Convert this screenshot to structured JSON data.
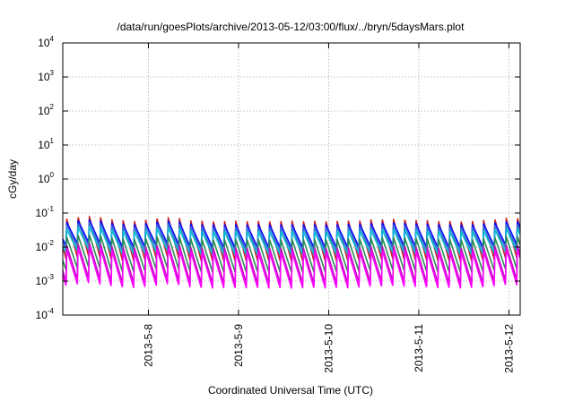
{
  "chart_data": {
    "type": "line",
    "title": "/data/run/goesPlots/archive/2013-05-12/03:00/flux/../bryn/5daysMars.plot",
    "xlabel": "Coordinated Universal Time (UTC)",
    "ylabel": "cGy/day",
    "x_range": [
      "2013-05-07T01:12",
      "2013-05-12T03:00"
    ],
    "y_range": [
      0.0001,
      10000
    ],
    "y_scale": "log",
    "grid": true,
    "x_ticks": [
      "2013-5-8",
      "2013-5-9",
      "2013-5-10",
      "2013-5-11",
      "2013-5-12"
    ],
    "y_ticks": [
      {
        "value": 0.0001,
        "base": "10",
        "exp": "-4"
      },
      {
        "value": 0.001,
        "base": "10",
        "exp": "-3"
      },
      {
        "value": 0.01,
        "base": "10",
        "exp": "-2"
      },
      {
        "value": 0.1,
        "base": "10",
        "exp": "-1"
      },
      {
        "value": 1,
        "base": "10",
        "exp": "0"
      },
      {
        "value": 10,
        "base": "10",
        "exp": "1"
      },
      {
        "value": 100,
        "base": "10",
        "exp": "2"
      },
      {
        "value": 1000,
        "base": "10",
        "exp": "3"
      },
      {
        "value": 10000,
        "base": "10",
        "exp": "4"
      }
    ],
    "pattern": {
      "period_hours": 3,
      "phase_hours": 2.1,
      "ramp_fraction": 0.05,
      "modulation": [
        {
          "center": "2013-05-07T08:00",
          "width_hours": 6,
          "gain": 1.4
        },
        {
          "center": "2013-05-08T05:00",
          "width_hours": 5,
          "gain": 1.3
        },
        {
          "center": "2013-05-10T17:00",
          "width_hours": 8,
          "gain": 1.15
        },
        {
          "center": "2013-05-12T01:00",
          "width_hours": 6,
          "gain": 1.25
        }
      ]
    },
    "series": [
      {
        "color": "#d02020",
        "peak": 0.058,
        "trough": 0.0038
      },
      {
        "color": "#0a0aff",
        "peak": 0.046,
        "trough": 0.0095
      },
      {
        "color": "#3a6fd8",
        "peak": 0.038,
        "trough": 0.0075
      },
      {
        "color": "#00bcd4",
        "peak": 0.029,
        "trough": 0.0058
      },
      {
        "color": "#2e8b57",
        "peak": 0.017,
        "trough": 0.0018
      },
      {
        "color": "#c010c0",
        "peak": 0.0095,
        "trough": 0.00085
      },
      {
        "color": "#ff00ff",
        "peak": 0.0072,
        "trough": 0.00062
      }
    ]
  }
}
